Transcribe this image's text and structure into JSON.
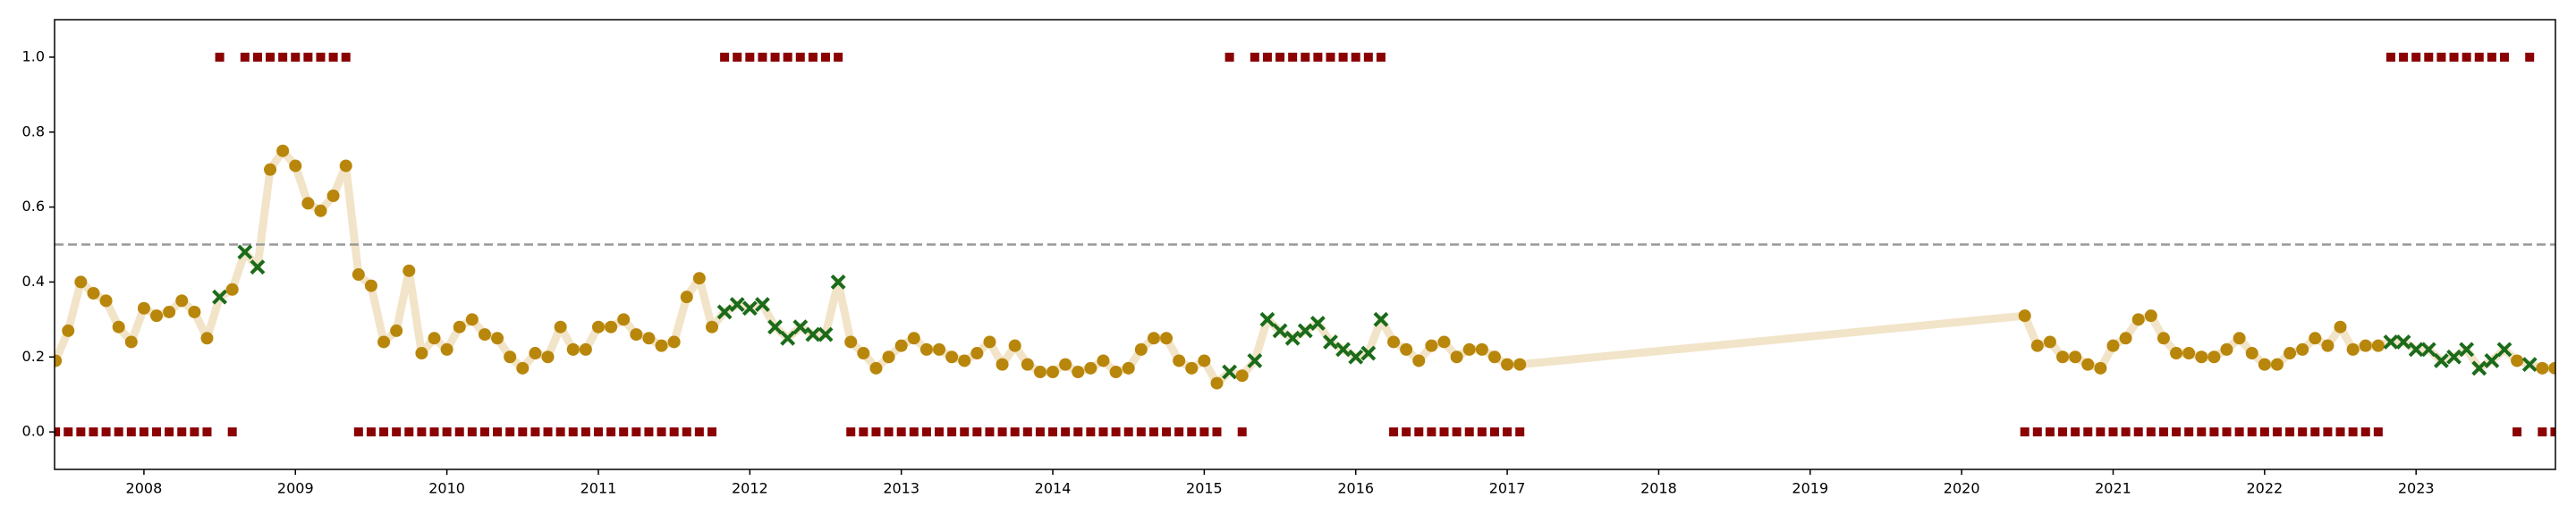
{
  "chart_data": {
    "type": "line",
    "x": [
      "2007-06",
      "2007-07",
      "2007-08",
      "2007-09",
      "2007-10",
      "2007-11",
      "2007-12",
      "2008-01",
      "2008-02",
      "2008-03",
      "2008-04",
      "2008-05",
      "2008-06",
      "2008-07",
      "2008-08",
      "2008-09",
      "2008-10",
      "2008-11",
      "2008-12",
      "2009-01",
      "2009-02",
      "2009-03",
      "2009-04",
      "2009-05",
      "2009-06",
      "2009-07",
      "2009-08",
      "2009-09",
      "2009-10",
      "2009-11",
      "2009-12",
      "2010-01",
      "2010-02",
      "2010-03",
      "2010-04",
      "2010-05",
      "2010-06",
      "2010-07",
      "2010-08",
      "2010-09",
      "2010-10",
      "2010-11",
      "2010-12",
      "2011-01",
      "2011-02",
      "2011-03",
      "2011-04",
      "2011-05",
      "2011-06",
      "2011-07",
      "2011-08",
      "2011-09",
      "2011-10",
      "2011-11",
      "2011-12",
      "2012-01",
      "2012-02",
      "2012-03",
      "2012-04",
      "2012-05",
      "2012-06",
      "2012-07",
      "2012-08",
      "2012-09",
      "2012-10",
      "2012-11",
      "2012-12",
      "2013-01",
      "2013-02",
      "2013-03",
      "2013-04",
      "2013-05",
      "2013-06",
      "2013-07",
      "2013-08",
      "2013-09",
      "2013-10",
      "2013-11",
      "2013-12",
      "2014-01",
      "2014-02",
      "2014-03",
      "2014-04",
      "2014-05",
      "2014-06",
      "2014-07",
      "2014-08",
      "2014-09",
      "2014-10",
      "2014-11",
      "2014-12",
      "2015-01",
      "2015-02",
      "2015-03",
      "2015-04",
      "2015-05",
      "2015-06",
      "2015-07",
      "2015-08",
      "2015-09",
      "2015-10",
      "2015-11",
      "2015-12",
      "2016-01",
      "2016-02",
      "2016-03",
      "2016-04",
      "2016-05",
      "2016-06",
      "2016-07",
      "2016-08",
      "2016-09",
      "2016-10",
      "2016-11",
      "2016-12",
      "2017-01",
      "2017-02",
      "2020-06",
      "2020-07",
      "2020-08",
      "2020-09",
      "2020-10",
      "2020-11",
      "2020-12",
      "2021-01",
      "2021-02",
      "2021-03",
      "2021-04",
      "2021-05",
      "2021-06",
      "2021-07",
      "2021-08",
      "2021-09",
      "2021-10",
      "2021-11",
      "2021-12",
      "2022-01",
      "2022-02",
      "2022-03",
      "2022-04",
      "2022-05",
      "2022-06",
      "2022-07",
      "2022-08",
      "2022-09",
      "2022-10",
      "2022-11",
      "2022-12",
      "2023-01",
      "2023-02",
      "2023-03",
      "2023-04",
      "2023-05",
      "2023-06",
      "2023-07",
      "2023-08",
      "2023-09",
      "2023-10",
      "2023-11",
      "2023-12"
    ],
    "series": [
      {
        "color": "#b8860b",
        "line_color": "#f2e4c8",
        "miss_color": "#1a6b1a",
        "values": [
          0.19,
          0.27,
          0.4,
          0.37,
          0.35,
          0.28,
          0.24,
          0.33,
          0.31,
          0.32,
          0.35,
          0.32,
          0.25,
          0.36,
          0.38,
          0.48,
          0.44,
          0.7,
          0.75,
          0.71,
          0.61,
          0.59,
          0.63,
          0.71,
          0.42,
          0.39,
          0.24,
          0.27,
          0.43,
          0.21,
          0.25,
          0.22,
          0.28,
          0.3,
          0.26,
          0.25,
          0.2,
          0.17,
          0.21,
          0.2,
          0.28,
          0.22,
          0.22,
          0.28,
          0.28,
          0.3,
          0.26,
          0.25,
          0.23,
          0.24,
          0.36,
          0.41,
          0.28,
          0.32,
          0.34,
          0.33,
          0.34,
          0.28,
          0.25,
          0.28,
          0.26,
          0.26,
          0.4,
          0.24,
          0.21,
          0.17,
          0.2,
          0.23,
          0.25,
          0.22,
          0.22,
          0.2,
          0.19,
          0.21,
          0.24,
          0.18,
          0.23,
          0.18,
          0.16,
          0.16,
          0.18,
          0.16,
          0.17,
          0.19,
          0.16,
          0.17,
          0.22,
          0.25,
          0.25,
          0.19,
          0.17,
          0.19,
          0.13,
          0.16,
          0.15,
          0.19,
          0.3,
          0.27,
          0.25,
          0.27,
          0.29,
          0.24,
          0.22,
          0.2,
          0.21,
          0.3,
          0.24,
          0.22,
          0.19,
          0.23,
          0.24,
          0.2,
          0.22,
          0.22,
          0.2,
          0.18,
          0.18,
          0.31,
          0.23,
          0.24,
          0.2,
          0.2,
          0.18,
          0.17,
          0.23,
          0.25,
          0.3,
          0.31,
          0.25,
          0.21,
          0.21,
          0.2,
          0.2,
          0.22,
          0.25,
          0.21,
          0.18,
          0.18,
          0.21,
          0.22,
          0.25,
          0.23,
          0.28,
          0.22,
          0.23,
          0.23,
          0.24,
          0.24,
          0.22,
          0.22,
          0.19,
          0.2,
          0.22,
          0.17,
          0.19,
          0.22,
          0.19,
          0.18,
          0.17,
          0.17
        ]
      },
      {
        "color": "#8b0000",
        "values": [
          0,
          0,
          0,
          0,
          0,
          0,
          0,
          0,
          0,
          0,
          0,
          0,
          0,
          1,
          0,
          1,
          1,
          1,
          1,
          1,
          1,
          1,
          1,
          1,
          0,
          0,
          0,
          0,
          0,
          0,
          0,
          0,
          0,
          0,
          0,
          0,
          0,
          0,
          0,
          0,
          0,
          0,
          0,
          0,
          0,
          0,
          0,
          0,
          0,
          0,
          0,
          0,
          0,
          1,
          1,
          1,
          1,
          1,
          1,
          1,
          1,
          1,
          1,
          0,
          0,
          0,
          0,
          0,
          0,
          0,
          0,
          0,
          0,
          0,
          0,
          0,
          0,
          0,
          0,
          0,
          0,
          0,
          0,
          0,
          0,
          0,
          0,
          0,
          0,
          0,
          0,
          0,
          0,
          1,
          0,
          1,
          1,
          1,
          1,
          1,
          1,
          1,
          1,
          1,
          1,
          1,
          0,
          0,
          0,
          0,
          0,
          0,
          0,
          0,
          0,
          0,
          0,
          0,
          0,
          0,
          0,
          0,
          0,
          0,
          0,
          0,
          0,
          0,
          0,
          0,
          0,
          0,
          0,
          0,
          0,
          0,
          0,
          0,
          0,
          0,
          0,
          0,
          0,
          0,
          0,
          0,
          1,
          1,
          1,
          1,
          1,
          1,
          1,
          1,
          1,
          1,
          0,
          1,
          0,
          0
        ]
      }
    ],
    "threshold": 0.5,
    "xlim": [
      2007.41,
      2023.92
    ],
    "xticks": [
      2008,
      2009,
      2010,
      2011,
      2012,
      2013,
      2014,
      2015,
      2016,
      2017,
      2018,
      2019,
      2020,
      2021,
      2022,
      2023
    ],
    "ylim": [
      -0.1,
      1.1
    ],
    "yticks": [
      {
        "value": 0,
        "label": "0.0"
      },
      0.2,
      0.4,
      0.6,
      0.8,
      {
        "value": 1,
        "label": "1.0"
      }
    ]
  }
}
